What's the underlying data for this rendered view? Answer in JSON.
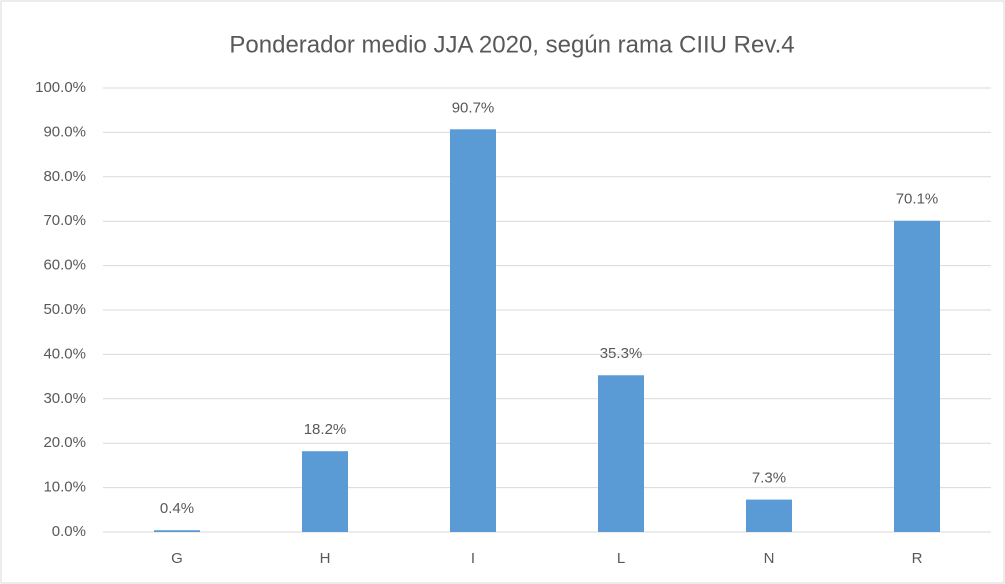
{
  "chart_data": {
    "type": "bar",
    "title": "Ponderador  medio JJA 2020, según rama CIIU Rev.4",
    "categories": [
      "G",
      "H",
      "I",
      "L",
      "N",
      "R"
    ],
    "values": [
      0.4,
      18.2,
      90.7,
      35.3,
      7.3,
      70.1
    ],
    "value_labels": [
      "0.4%",
      "18.2%",
      "90.7%",
      "35.3%",
      "7.3%",
      "70.1%"
    ],
    "color": "#5b9bd5",
    "ylim": [
      0,
      100
    ],
    "yticks": [
      {
        "value": 0,
        "label": "0.0%"
      },
      {
        "value": 10,
        "label": "10.0%"
      },
      {
        "value": 20,
        "label": "20.0%"
      },
      {
        "value": 30,
        "label": "30.0%"
      },
      {
        "value": 40,
        "label": "40.0%"
      },
      {
        "value": 50,
        "label": "50.0%"
      },
      {
        "value": 60,
        "label": "60.0%"
      },
      {
        "value": 70,
        "label": "70.0%"
      },
      {
        "value": 80,
        "label": "80.0%"
      },
      {
        "value": 90,
        "label": "90.0%"
      },
      {
        "value": 100,
        "label": "100.0%"
      }
    ],
    "grid": true
  }
}
